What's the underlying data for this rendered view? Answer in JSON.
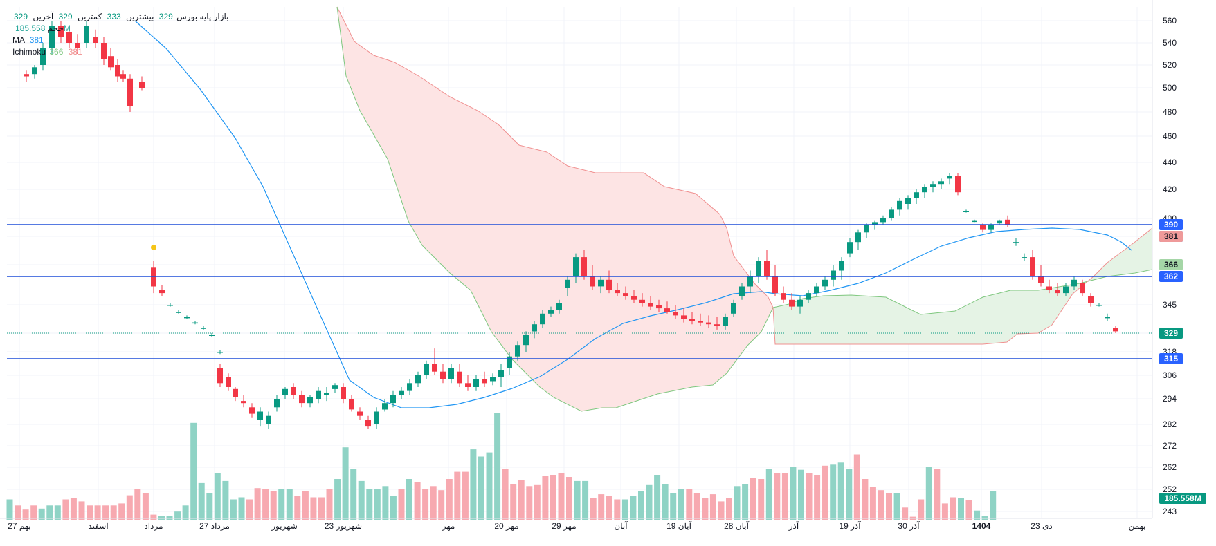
{
  "legend": {
    "symbol_name": "بازار پایه بورس",
    "last_label": "آخرین",
    "last_value": "329",
    "low_label": "کمترین",
    "low_value": "329",
    "high_label": "بیشترین",
    "high_value": "333",
    "close_value": "329",
    "volume_label": "حجم",
    "volume_value": "185.558M",
    "ma_label": "MA",
    "ma_value": "381",
    "ichimoku_label": "Ichimoku",
    "ichimoku_value_a": "366",
    "ichimoku_value_b": "381"
  },
  "colors": {
    "up": "#089981",
    "down": "#f23645",
    "volume_up": "#8fd3c5",
    "volume_down": "#f7a9b0",
    "ma": "#2196f3",
    "hline": "#1e4fd8",
    "cloud_bull_fill": "#e5f3e5",
    "cloud_bear_fill": "#fde4e4",
    "span_a": "#7fc77f",
    "span_b": "#f09090",
    "badge_blue": "#2962ff",
    "badge_green_light": "#a5d6a7",
    "badge_red_light": "#ef9a9a",
    "badge_last": "#089981"
  },
  "chart_data": {
    "type": "candlestick",
    "title": "بازار پایه بورس",
    "y_ticks": [
      "560",
      "540",
      "520",
      "500",
      "480",
      "460",
      "440",
      "420",
      "400",
      "390",
      "381",
      "366",
      "362",
      "345",
      "329",
      "318",
      "315",
      "306",
      "294",
      "282",
      "272",
      "262",
      "252",
      "243"
    ],
    "x_labels": [
      "27 بهم",
      "اسفند",
      "مرداد",
      "27 مرداد",
      "شهریور",
      "23 شهریور",
      "مهر",
      "20 مهر",
      "29 مهر",
      "آبان",
      "19 آبان",
      "28 آبان",
      "آذر",
      "19 آذر",
      "30 آذر",
      "1404",
      "23 دی",
      "بهمن"
    ],
    "horizontal_levels": [
      390,
      362,
      315
    ],
    "last_price": 329,
    "price_badges": [
      {
        "label": "390",
        "kind": "level"
      },
      {
        "label": "381",
        "kind": "ma"
      },
      {
        "label": "381",
        "kind": "span_b"
      },
      {
        "label": "366",
        "kind": "span_a"
      },
      {
        "label": "362",
        "kind": "level"
      },
      {
        "label": "329",
        "kind": "last"
      },
      {
        "label": "315",
        "kind": "level"
      }
    ],
    "volume_badge": "185.558M",
    "volume": [
      20,
      14,
      10,
      14,
      11,
      14,
      14,
      20,
      21,
      18,
      14,
      14,
      14,
      14,
      16,
      24,
      30,
      26,
      5,
      4,
      4,
      8,
      14,
      95,
      36,
      26,
      46,
      38,
      20,
      22,
      20,
      31,
      30,
      28,
      30,
      30,
      23,
      28,
      22,
      22,
      30,
      40,
      71,
      50,
      38,
      30,
      30,
      33,
      23,
      30,
      40,
      37,
      30,
      33,
      29,
      40,
      47,
      47,
      69,
      62,
      66,
      105,
      50,
      35,
      39,
      33,
      34,
      43,
      44,
      46,
      42,
      38,
      38,
      21,
      25,
      23,
      20,
      20,
      23,
      28,
      34,
      44,
      35,
      26,
      30,
      30,
      26,
      21,
      25,
      18,
      21,
      33,
      35,
      41,
      40,
      50,
      46,
      46,
      52,
      49,
      46,
      44,
      53,
      54,
      56,
      50,
      64,
      40,
      32,
      29,
      26,
      26,
      12,
      3,
      20,
      52,
      50,
      16,
      22,
      21,
      19,
      9,
      4,
      28
    ]
  }
}
